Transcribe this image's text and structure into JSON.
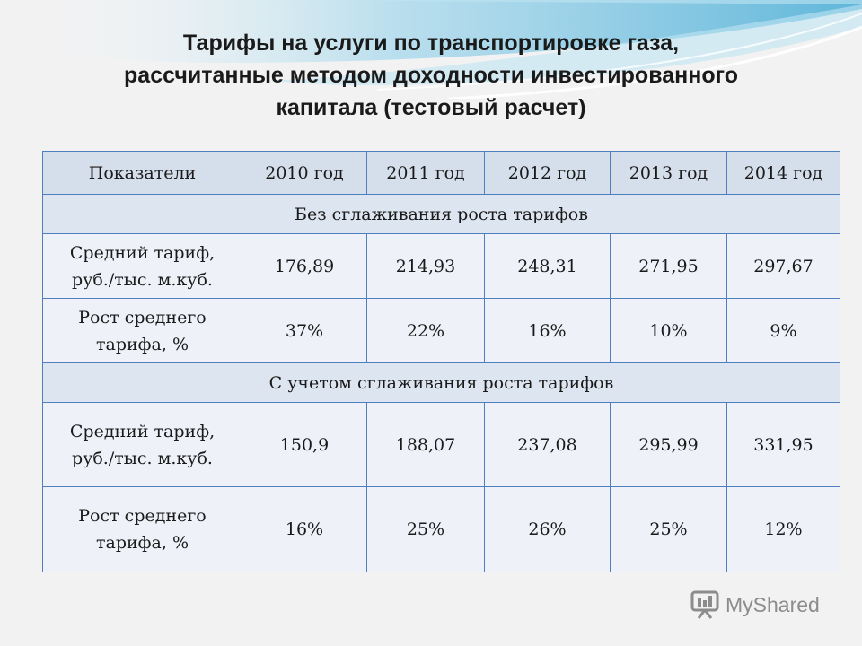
{
  "slide": {
    "title_lines": [
      "Тарифы на услуги по транспортировке газа,",
      "рассчитанные методом доходности инвестированного",
      "капитала (тестовый расчет)"
    ]
  },
  "table": {
    "headers": [
      "Показатели",
      "2010 год",
      "2011 год",
      "2012 год",
      "2013 год",
      "2014 год"
    ],
    "sections": [
      {
        "title": "Без сглаживания роста тарифов",
        "rows": [
          {
            "label_lines": [
              "Средний тариф,",
              "руб./тыс. м.куб."
            ],
            "values": [
              "176,89",
              "214,93",
              "248,31",
              "271,95",
              "297,67"
            ]
          },
          {
            "label_lines": [
              "Рост среднего",
              "тарифа, %"
            ],
            "values": [
              "37%",
              "22%",
              "16%",
              "10%",
              "9%"
            ]
          }
        ]
      },
      {
        "title": "С учетом сглаживания роста тарифов",
        "rows": [
          {
            "label_lines": [
              "Средний тариф,",
              "руб./тыс. м.куб."
            ],
            "values": [
              "150,9",
              "188,07",
              "237,08",
              "295,99",
              "331,95"
            ]
          },
          {
            "label_lines": [
              "Рост среднего",
              "тарифа, %"
            ],
            "values": [
              "16%",
              "25%",
              "26%",
              "25%",
              "12%"
            ]
          }
        ]
      }
    ]
  },
  "watermark": {
    "text": "MyShared",
    "icon": "presentation-board-icon"
  },
  "colors": {
    "border": "#4f7fbf",
    "header_bg": "#d5deeb",
    "cell_bg": "#eef2f8",
    "wave": "#5ab4d6"
  }
}
